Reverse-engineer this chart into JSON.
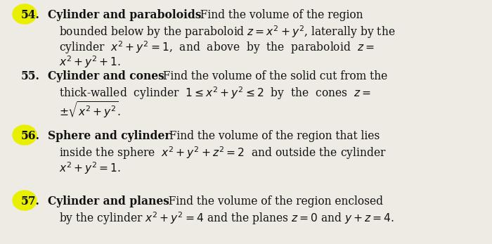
{
  "background_color": "#eeebe5",
  "highlight_color": "#e8f000",
  "text_color": "#111111",
  "figsize": [
    7.0,
    3.47
  ],
  "dpi": 100,
  "problems": [
    {
      "number": "54.",
      "highlight": true,
      "title": "Cylinder and paraboloids",
      "lines": [
        "Find the volume of the region",
        "bounded below by the paraboloid $z = x^2 + y^2$, laterally by the",
        "cylinder  $x^2 + y^2 = 1$,  and  above  by  the  paraboloid  $z =$",
        "$x^2 + y^2 + 1$."
      ]
    },
    {
      "number": "55.",
      "highlight": false,
      "title": "Cylinder and cones",
      "lines": [
        "Find the volume of the solid cut from the",
        "thick-walled  cylinder  $1 \\leq x^2 + y^2 \\leq 2$  by  the  cones  $z =$",
        "$\\pm\\sqrt{x^2 + y^2}$."
      ]
    },
    {
      "number": "56.",
      "highlight": true,
      "title": "Sphere and cylinder",
      "lines": [
        "Find the volume of the region that lies",
        "inside the sphere  $x^2 + y^2 + z^2 = 2$  and outside the cylinder",
        "$x^2 + y^2 = 1$."
      ]
    },
    {
      "number": "57.",
      "highlight": true,
      "title": "Cylinder and planes",
      "lines": [
        "Find the volume of the region enclosed",
        "by the cylinder $x^2 + y^2 = 4$ and the planes $z = 0$ and $y + z = 4$."
      ]
    }
  ]
}
